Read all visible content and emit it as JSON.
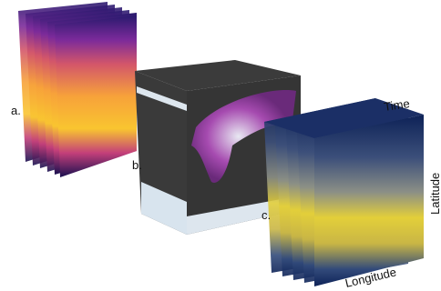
{
  "panels": [
    {
      "label": "a."
    },
    {
      "label": "b."
    },
    {
      "label": "c."
    }
  ],
  "axes": {
    "time": "Time",
    "latitude": "Latitude",
    "longitude": "Longitude"
  }
}
